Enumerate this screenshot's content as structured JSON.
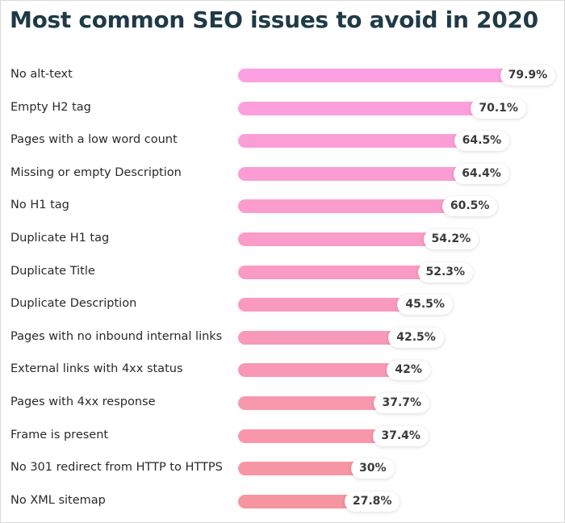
{
  "chart_data": {
    "type": "bar",
    "orientation": "horizontal",
    "title": "Most common SEO issues to avoid in 2020",
    "categories": [
      "No alt-text",
      "Empty H2 tag",
      "Pages with a low word count",
      "Missing or empty Description",
      "No H1 tag",
      "Duplicate H1 tag",
      "Duplicate Title",
      "Duplicate Description",
      "Pages with no inbound internal links",
      "External links with 4xx status",
      "Pages with 4xx response",
      "Frame is present",
      "No 301 redirect from HTTP to HTTPS",
      "No XML sitemap"
    ],
    "values": [
      79.9,
      70.1,
      64.5,
      64.4,
      60.5,
      54.2,
      52.3,
      45.5,
      42.5,
      42,
      37.7,
      37.4,
      30,
      27.8
    ],
    "value_labels": [
      "79.9%",
      "70.1%",
      "64.5%",
      "64.4%",
      "60.5%",
      "54.2%",
      "52.3%",
      "45.5%",
      "42.5%",
      "42%",
      "37.7%",
      "37.4%",
      "30%",
      "27.8%"
    ],
    "unit": "%",
    "grid": false,
    "colors": {
      "top": "#fca0e2",
      "bottom": "#f6959f",
      "title": "#1f3a47"
    }
  }
}
